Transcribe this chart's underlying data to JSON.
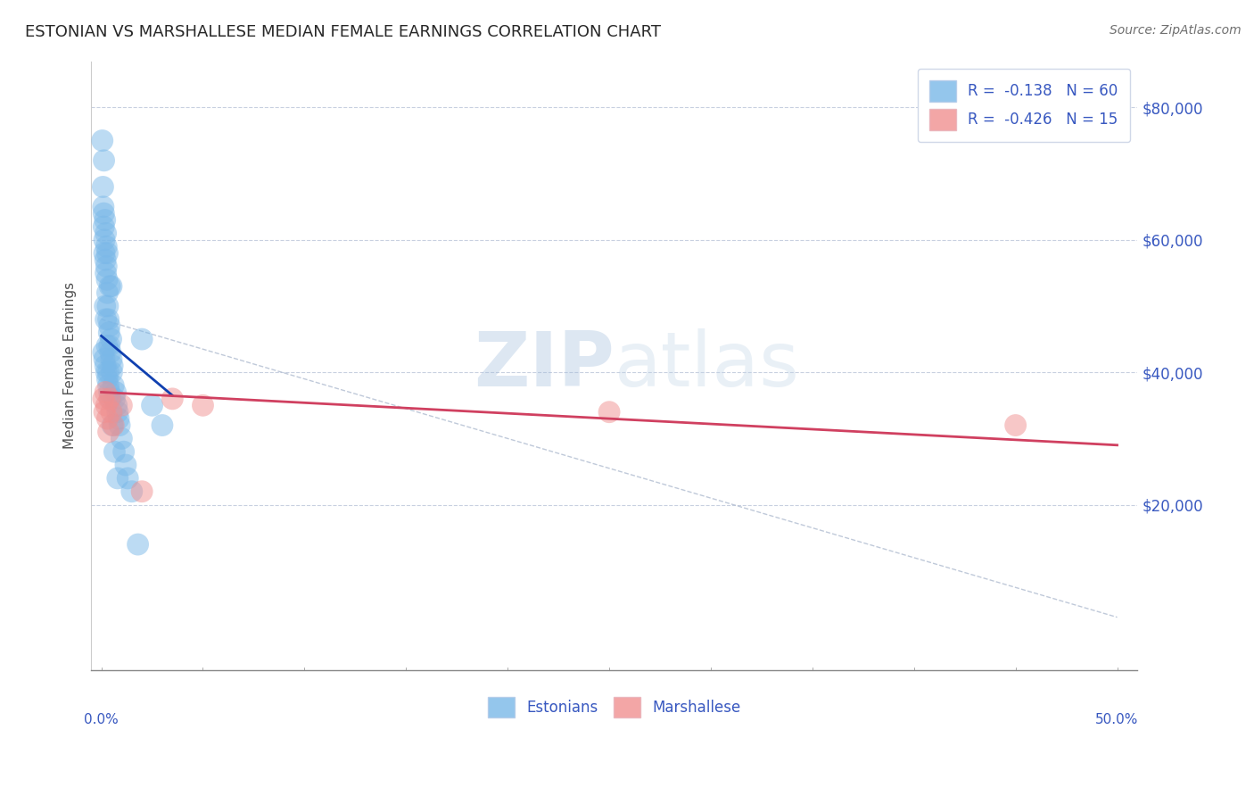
{
  "title": "ESTONIAN VS MARSHALLESE MEDIAN FEMALE EARNINGS CORRELATION CHART",
  "source": "Source: ZipAtlas.com",
  "ylabel": "Median Female Earnings",
  "xlabel_edge_labels": [
    "0.0%",
    "50.0%"
  ],
  "ytick_vals": [
    0,
    20000,
    40000,
    60000,
    80000
  ],
  "ytick_labels_right": [
    "",
    "$20,000",
    "$40,000",
    "$60,000",
    "$80,000"
  ],
  "xlim": [
    -0.5,
    51
  ],
  "ylim": [
    -5000,
    87000
  ],
  "watermark_zip": "ZIP",
  "watermark_atlas": "atlas",
  "legend_label_estonians": "Estonians",
  "legend_label_marshallese": "Marshallese",
  "estonian_color": "#7ab8e8",
  "marshallese_color": "#f09090",
  "trend_blue_color": "#1040b0",
  "trend_pink_color": "#d04060",
  "dashed_line_color": "#b0bcd0",
  "background_color": "#ffffff",
  "grid_color": "#c8d0e0",
  "title_color": "#282828",
  "axis_label_color": "#505050",
  "tick_label_color": "#3858c0",
  "R_estonian": -0.138,
  "N_estonian": 60,
  "R_marshallese": -0.426,
  "N_marshallese": 15,
  "estonian_x": [
    0.05,
    0.08,
    0.1,
    0.12,
    0.13,
    0.15,
    0.15,
    0.18,
    0.2,
    0.22,
    0.22,
    0.25,
    0.25,
    0.28,
    0.3,
    0.3,
    0.32,
    0.35,
    0.38,
    0.4,
    0.4,
    0.42,
    0.45,
    0.48,
    0.5,
    0.52,
    0.55,
    0.6,
    0.65,
    0.7,
    0.75,
    0.8,
    0.85,
    0.9,
    1.0,
    1.1,
    1.2,
    1.3,
    1.5,
    1.8,
    2.0,
    2.5,
    3.0,
    0.1,
    0.15,
    0.2,
    0.25,
    0.3,
    0.35,
    0.4,
    0.18,
    0.22,
    0.28,
    0.35,
    0.45,
    0.55,
    0.65,
    0.8,
    0.12,
    0.5
  ],
  "estonian_y": [
    75000,
    68000,
    65000,
    62000,
    72000,
    60000,
    58000,
    63000,
    57000,
    55000,
    61000,
    59000,
    56000,
    54000,
    52000,
    58000,
    50000,
    48000,
    46000,
    44000,
    47000,
    53000,
    43000,
    45000,
    42000,
    40000,
    41000,
    38000,
    36000,
    37000,
    35000,
    34000,
    33000,
    32000,
    30000,
    28000,
    26000,
    24000,
    22000,
    14000,
    45000,
    35000,
    32000,
    43000,
    42000,
    41000,
    40000,
    39000,
    38000,
    37000,
    50000,
    48000,
    44000,
    40000,
    36000,
    32000,
    28000,
    24000,
    64000,
    53000
  ],
  "marshallese_x": [
    0.1,
    0.15,
    0.2,
    0.25,
    0.3,
    0.35,
    0.4,
    0.5,
    0.6,
    1.0,
    2.0,
    3.5,
    5.0,
    25.0,
    45.0
  ],
  "marshallese_y": [
    36000,
    34000,
    37000,
    35000,
    33000,
    31000,
    36000,
    34000,
    32000,
    35000,
    22000,
    36000,
    35000,
    34000,
    32000
  ],
  "estonian_trend_x": [
    0.0,
    3.5
  ],
  "estonian_trend_y": [
    45500,
    36500
  ],
  "marshallese_trend_x": [
    0.0,
    50.0
  ],
  "marshallese_trend_y": [
    37000,
    29000
  ],
  "dashed_line_x": [
    0.0,
    50.0
  ],
  "dashed_line_y": [
    48000,
    3000
  ]
}
